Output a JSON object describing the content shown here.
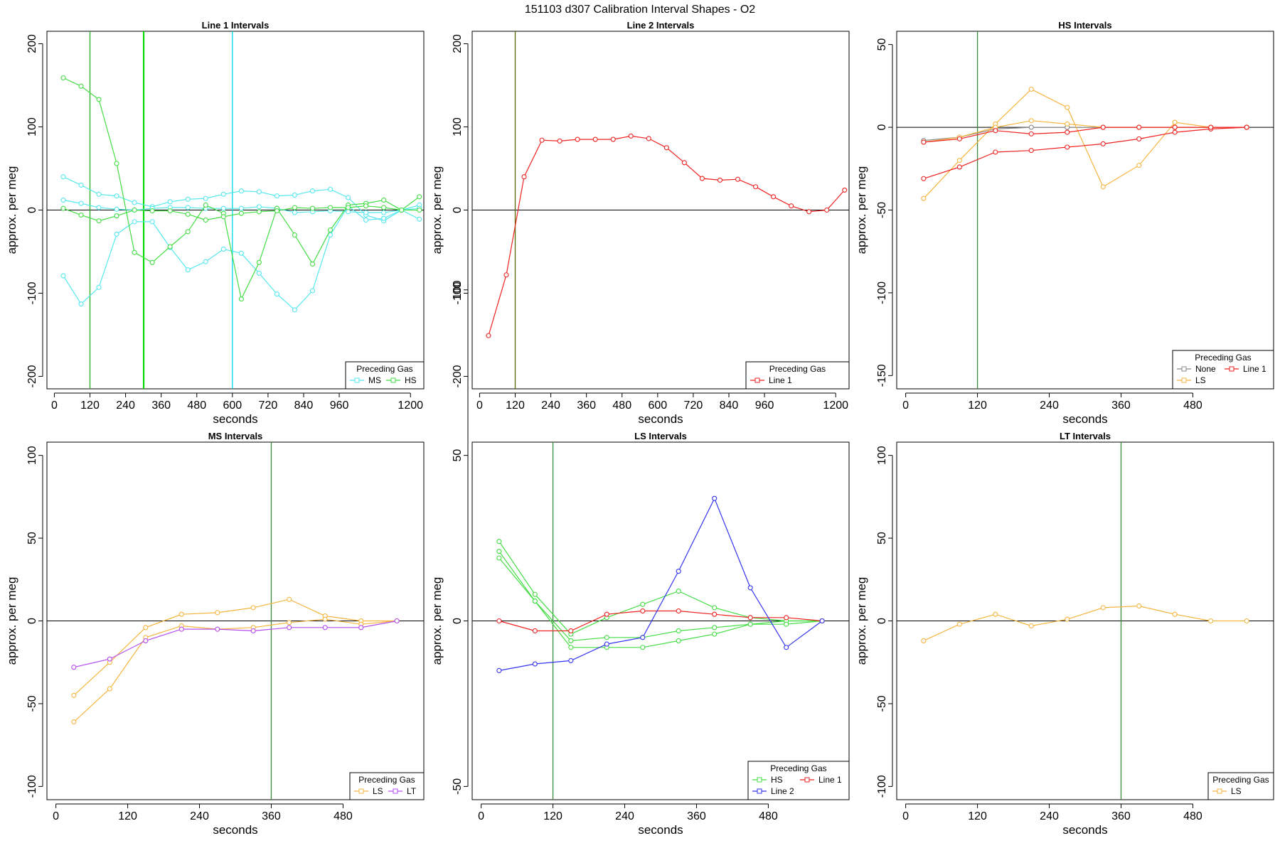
{
  "figure": {
    "title": "151103   d307   Calibration Interval Shapes - O2"
  },
  "chart_data": [
    {
      "type": "line",
      "title": "Line 1 Intervals",
      "xlabel": "seconds",
      "ylabel": "approx. per meg",
      "xlim": [
        -25,
        1245
      ],
      "ylim": [
        -215,
        215
      ],
      "xticks": [
        0,
        120,
        240,
        360,
        480,
        600,
        720,
        840,
        960,
        1200
      ],
      "yticks": [
        -200,
        -100,
        0,
        100,
        200
      ],
      "vlines": [
        {
          "x": 120,
          "color": "#22aa22"
        },
        {
          "x": 300,
          "color": "#00dd00"
        },
        {
          "x": 302,
          "color": "#00dd00"
        },
        {
          "x": 600,
          "color": "#00d8e8"
        }
      ],
      "hline": 0,
      "legend": {
        "title": "Preceding Gas",
        "entries": [
          {
            "name": "MS",
            "color": "#55e8ee"
          },
          {
            "name": "HS",
            "color": "#44dd44"
          }
        ]
      },
      "series": [
        {
          "name": "MS",
          "color": "#55e8ee",
          "x": [
            30,
            90,
            150,
            210,
            270,
            330,
            390,
            450,
            510,
            570,
            630,
            690,
            750,
            810,
            870,
            930,
            990,
            1050,
            1110,
            1170,
            1230
          ],
          "y": [
            40,
            30,
            19,
            17,
            9,
            4,
            10,
            13,
            14,
            19,
            23,
            22,
            17,
            18,
            23,
            25,
            15,
            -6,
            -13,
            0,
            6
          ]
        },
        {
          "name": "MS",
          "color": "#55e8ee",
          "x": [
            30,
            90,
            150,
            210,
            270,
            330,
            390,
            450,
            510,
            570,
            630,
            690,
            750,
            810,
            870,
            930,
            990,
            1050,
            1110,
            1170,
            1230
          ],
          "y": [
            12,
            8,
            3,
            1,
            0,
            2,
            3,
            3,
            2,
            2,
            2,
            4,
            2,
            -3,
            -2,
            -1,
            -2,
            -3,
            -3,
            0,
            2
          ]
        },
        {
          "name": "MS",
          "color": "#55e8ee",
          "x": [
            30,
            90,
            150,
            210,
            270,
            330,
            390,
            450,
            510,
            570,
            630,
            690,
            750,
            810,
            870,
            930,
            990,
            1050,
            1110,
            1170,
            1230
          ],
          "y": [
            -79,
            -113,
            -93,
            -29,
            -14,
            -14,
            -45,
            -72,
            -62,
            -47,
            -52,
            -76,
            -101,
            -120,
            -97,
            -30,
            5,
            -12,
            -10,
            0,
            -11
          ]
        },
        {
          "name": "HS",
          "color": "#44dd44",
          "x": [
            30,
            90,
            150,
            210,
            270,
            330,
            390,
            450,
            510,
            570,
            630,
            690,
            750,
            810,
            870,
            930,
            990,
            1050,
            1110,
            1170,
            1230
          ],
          "y": [
            159,
            149,
            133,
            56,
            -51,
            -63,
            -44,
            -26,
            6,
            -4,
            -107,
            -63,
            2,
            -30,
            -65,
            -24,
            6,
            8,
            12,
            0,
            16
          ]
        },
        {
          "name": "HS",
          "color": "#44dd44",
          "x": [
            30,
            90,
            150,
            210,
            270,
            330,
            390,
            450,
            510,
            570,
            630,
            690,
            750,
            810,
            870,
            930,
            990,
            1050,
            1110,
            1170,
            1230
          ],
          "y": [
            2,
            -6,
            -13,
            -7,
            0,
            -1,
            -1,
            -5,
            -12,
            -8,
            -4,
            -2,
            -1,
            3,
            2,
            3,
            3,
            5,
            3,
            0,
            0
          ]
        }
      ]
    },
    {
      "type": "line",
      "title": "Line 2 Intervals",
      "xlabel": "seconds",
      "ylabel": "approx. per meg",
      "xlim": [
        -25,
        1245
      ],
      "ylim": [
        -215,
        215
      ],
      "xticks": [
        0,
        120,
        240,
        360,
        480,
        600,
        720,
        840,
        960,
        1200
      ],
      "yticks": [
        -200,
        -100,
        0,
        100,
        200
      ],
      "vlines": [
        {
          "x": 120,
          "color": "#556b00"
        }
      ],
      "hline": 0,
      "legend": {
        "title": "Preceding Gas",
        "entries": [
          {
            "name": "Line 1",
            "color": "#ee2222"
          }
        ]
      },
      "series": [
        {
          "name": "Line 1",
          "color": "#ee2222",
          "x": [
            30,
            90,
            150,
            210,
            270,
            330,
            390,
            450,
            510,
            570,
            630,
            690,
            750,
            810,
            870,
            930,
            990,
            1050,
            1110,
            1170,
            1230
          ],
          "y": [
            -151,
            -78,
            40,
            84,
            83,
            85,
            85,
            85,
            89,
            86,
            75,
            57,
            38,
            36,
            37,
            28,
            16,
            5,
            -2,
            0,
            24
          ]
        }
      ]
    },
    {
      "type": "line",
      "title": "HS Intervals",
      "xlabel": "seconds",
      "ylabel": "approx. per meg",
      "xlim": [
        -15,
        615
      ],
      "ylim": [
        -158,
        58
      ],
      "xticks": [
        0,
        120,
        240,
        360,
        480
      ],
      "yticks": [
        -150,
        -100,
        -50,
        0,
        50
      ],
      "vlines": [
        {
          "x": 120,
          "color": "#3a8a3a"
        }
      ],
      "hline": 0,
      "legend": {
        "title": "Preceding Gas",
        "entries": [
          {
            "name": "None",
            "color": "#888888"
          },
          {
            "name": "Line 1",
            "color": "#ee2222"
          },
          {
            "name": "LS",
            "color": "#f5b540"
          }
        ]
      },
      "series": [
        {
          "name": "None",
          "color": "#888888",
          "x": [
            30,
            90,
            150,
            210,
            270,
            330,
            390,
            450,
            510,
            570
          ],
          "y": [
            -8,
            -6,
            -1,
            0,
            0,
            0,
            0,
            0,
            0,
            0
          ]
        },
        {
          "name": "LS",
          "color": "#f5b540",
          "x": [
            30,
            90,
            150,
            210,
            270,
            330,
            390,
            450,
            510,
            570
          ],
          "y": [
            -43,
            -20,
            2,
            23,
            12,
            -36,
            -23,
            3,
            0,
            0
          ]
        },
        {
          "name": "LS",
          "color": "#f5b540",
          "x": [
            30,
            90,
            150,
            210,
            270,
            330,
            390,
            450,
            510,
            570
          ],
          "y": [
            -9,
            -6,
            0,
            4,
            2,
            0,
            0,
            0,
            0,
            0
          ]
        },
        {
          "name": "Line 1",
          "color": "#ee2222",
          "x": [
            30,
            90,
            150,
            210,
            270,
            330,
            390,
            450,
            510,
            570
          ],
          "y": [
            -31,
            -24,
            -15,
            -14,
            -12,
            -10,
            -7,
            -3,
            -1,
            0
          ]
        },
        {
          "name": "Line 1",
          "color": "#ee2222",
          "x": [
            30,
            90,
            150,
            210,
            270,
            330,
            390,
            450,
            510,
            570
          ],
          "y": [
            -9,
            -7,
            -2,
            -4,
            -3,
            0,
            0,
            0,
            0,
            0
          ]
        }
      ]
    },
    {
      "type": "line",
      "title": "MS Intervals",
      "xlabel": "seconds",
      "ylabel": "approx. per meg",
      "xlim": [
        -15,
        615
      ],
      "ylim": [
        -108,
        108
      ],
      "xticks": [
        0,
        120,
        240,
        360,
        480
      ],
      "yticks": [
        -100,
        -50,
        0,
        50,
        100
      ],
      "vlines": [
        {
          "x": 360,
          "color": "#3a8a3a"
        }
      ],
      "hline": 0,
      "legend": {
        "title": "Preceding Gas",
        "entries": [
          {
            "name": "LS",
            "color": "#f5b540"
          },
          {
            "name": "LT",
            "color": "#b44ef0"
          }
        ]
      },
      "series": [
        {
          "name": "LS",
          "color": "#f5b540",
          "x": [
            30,
            90,
            150,
            210,
            270,
            330,
            390,
            450,
            510,
            570
          ],
          "y": [
            -45,
            -25,
            -4,
            4,
            5,
            8,
            13,
            3,
            0,
            0
          ]
        },
        {
          "name": "LS",
          "color": "#f5b540",
          "x": [
            30,
            90,
            150,
            210,
            270,
            330,
            390,
            450,
            510,
            570
          ],
          "y": [
            -61,
            -41,
            -10,
            -3,
            -5,
            -4,
            -1,
            1,
            -2,
            0
          ]
        },
        {
          "name": "LT",
          "color": "#b44ef0",
          "x": [
            30,
            90,
            150,
            210,
            270,
            330,
            390,
            450,
            510,
            570
          ],
          "y": [
            -28,
            -23,
            -12,
            -5,
            -5,
            -6,
            -4,
            -4,
            -4,
            0
          ]
        }
      ]
    },
    {
      "type": "line",
      "title": "LS Intervals",
      "xlabel": "seconds",
      "ylabel": "approx. per meg",
      "xlim": [
        -15,
        615
      ],
      "ylim": [
        -54,
        54
      ],
      "xticks": [
        0,
        120,
        240,
        360,
        480
      ],
      "yticks": [
        -50,
        0,
        50,
        100
      ],
      "vlines": [
        {
          "x": 120,
          "color": "#3a8a3a"
        }
      ],
      "hline": 0,
      "legend": {
        "title": "Preceding Gas",
        "entries": [
          {
            "name": "HS",
            "color": "#44dd44"
          },
          {
            "name": "Line 1",
            "color": "#ee2222"
          },
          {
            "name": "Line 2",
            "color": "#3333ee"
          }
        ]
      },
      "series": [
        {
          "name": "HS",
          "color": "#44dd44",
          "x": [
            30,
            90,
            150,
            210,
            270,
            330,
            390,
            450,
            510,
            570
          ],
          "y": [
            24,
            8,
            -4,
            1,
            5,
            9,
            4,
            1,
            0,
            0
          ]
        },
        {
          "name": "HS",
          "color": "#44dd44",
          "x": [
            30,
            90,
            150,
            210,
            270,
            330,
            390,
            450,
            510,
            570
          ],
          "y": [
            21,
            6,
            -6,
            -5,
            -5,
            -3,
            -2,
            -1,
            0,
            0
          ]
        },
        {
          "name": "HS",
          "color": "#44dd44",
          "x": [
            30,
            90,
            150,
            210,
            270,
            330,
            390,
            450,
            510,
            570
          ],
          "y": [
            19,
            6,
            -8,
            -8,
            -8,
            -6,
            -4,
            -1,
            -1,
            0
          ]
        },
        {
          "name": "Line 1",
          "color": "#ee2222",
          "x": [
            30,
            90,
            150,
            210,
            270,
            330,
            390,
            450,
            510,
            570
          ],
          "y": [
            0,
            -3,
            -3,
            2,
            3,
            3,
            2,
            1,
            1,
            0
          ]
        },
        {
          "name": "Line 2",
          "color": "#3333ee",
          "x": [
            30,
            90,
            150,
            210,
            270,
            330,
            390,
            450,
            510,
            570
          ],
          "y": [
            -15,
            -13,
            -12,
            -7,
            -5,
            15,
            37,
            10,
            -8,
            0
          ]
        }
      ]
    },
    {
      "type": "line",
      "title": "LT Intervals",
      "xlabel": "seconds",
      "ylabel": "approx. per meg",
      "xlim": [
        -15,
        615
      ],
      "ylim": [
        -108,
        108
      ],
      "xticks": [
        0,
        120,
        240,
        360,
        480
      ],
      "yticks": [
        -100,
        -50,
        0,
        50,
        100
      ],
      "vlines": [
        {
          "x": 360,
          "color": "#3a8a3a"
        }
      ],
      "hline": 0,
      "legend": {
        "title": "Preceding Gas",
        "entries": [
          {
            "name": "LS",
            "color": "#f5b540"
          }
        ]
      },
      "series": [
        {
          "name": "LS",
          "color": "#f5b540",
          "x": [
            30,
            90,
            150,
            210,
            270,
            330,
            390,
            450,
            510,
            570
          ],
          "y": [
            -12,
            -2,
            4,
            -3,
            1,
            8,
            9,
            4,
            0,
            0
          ]
        }
      ]
    }
  ]
}
